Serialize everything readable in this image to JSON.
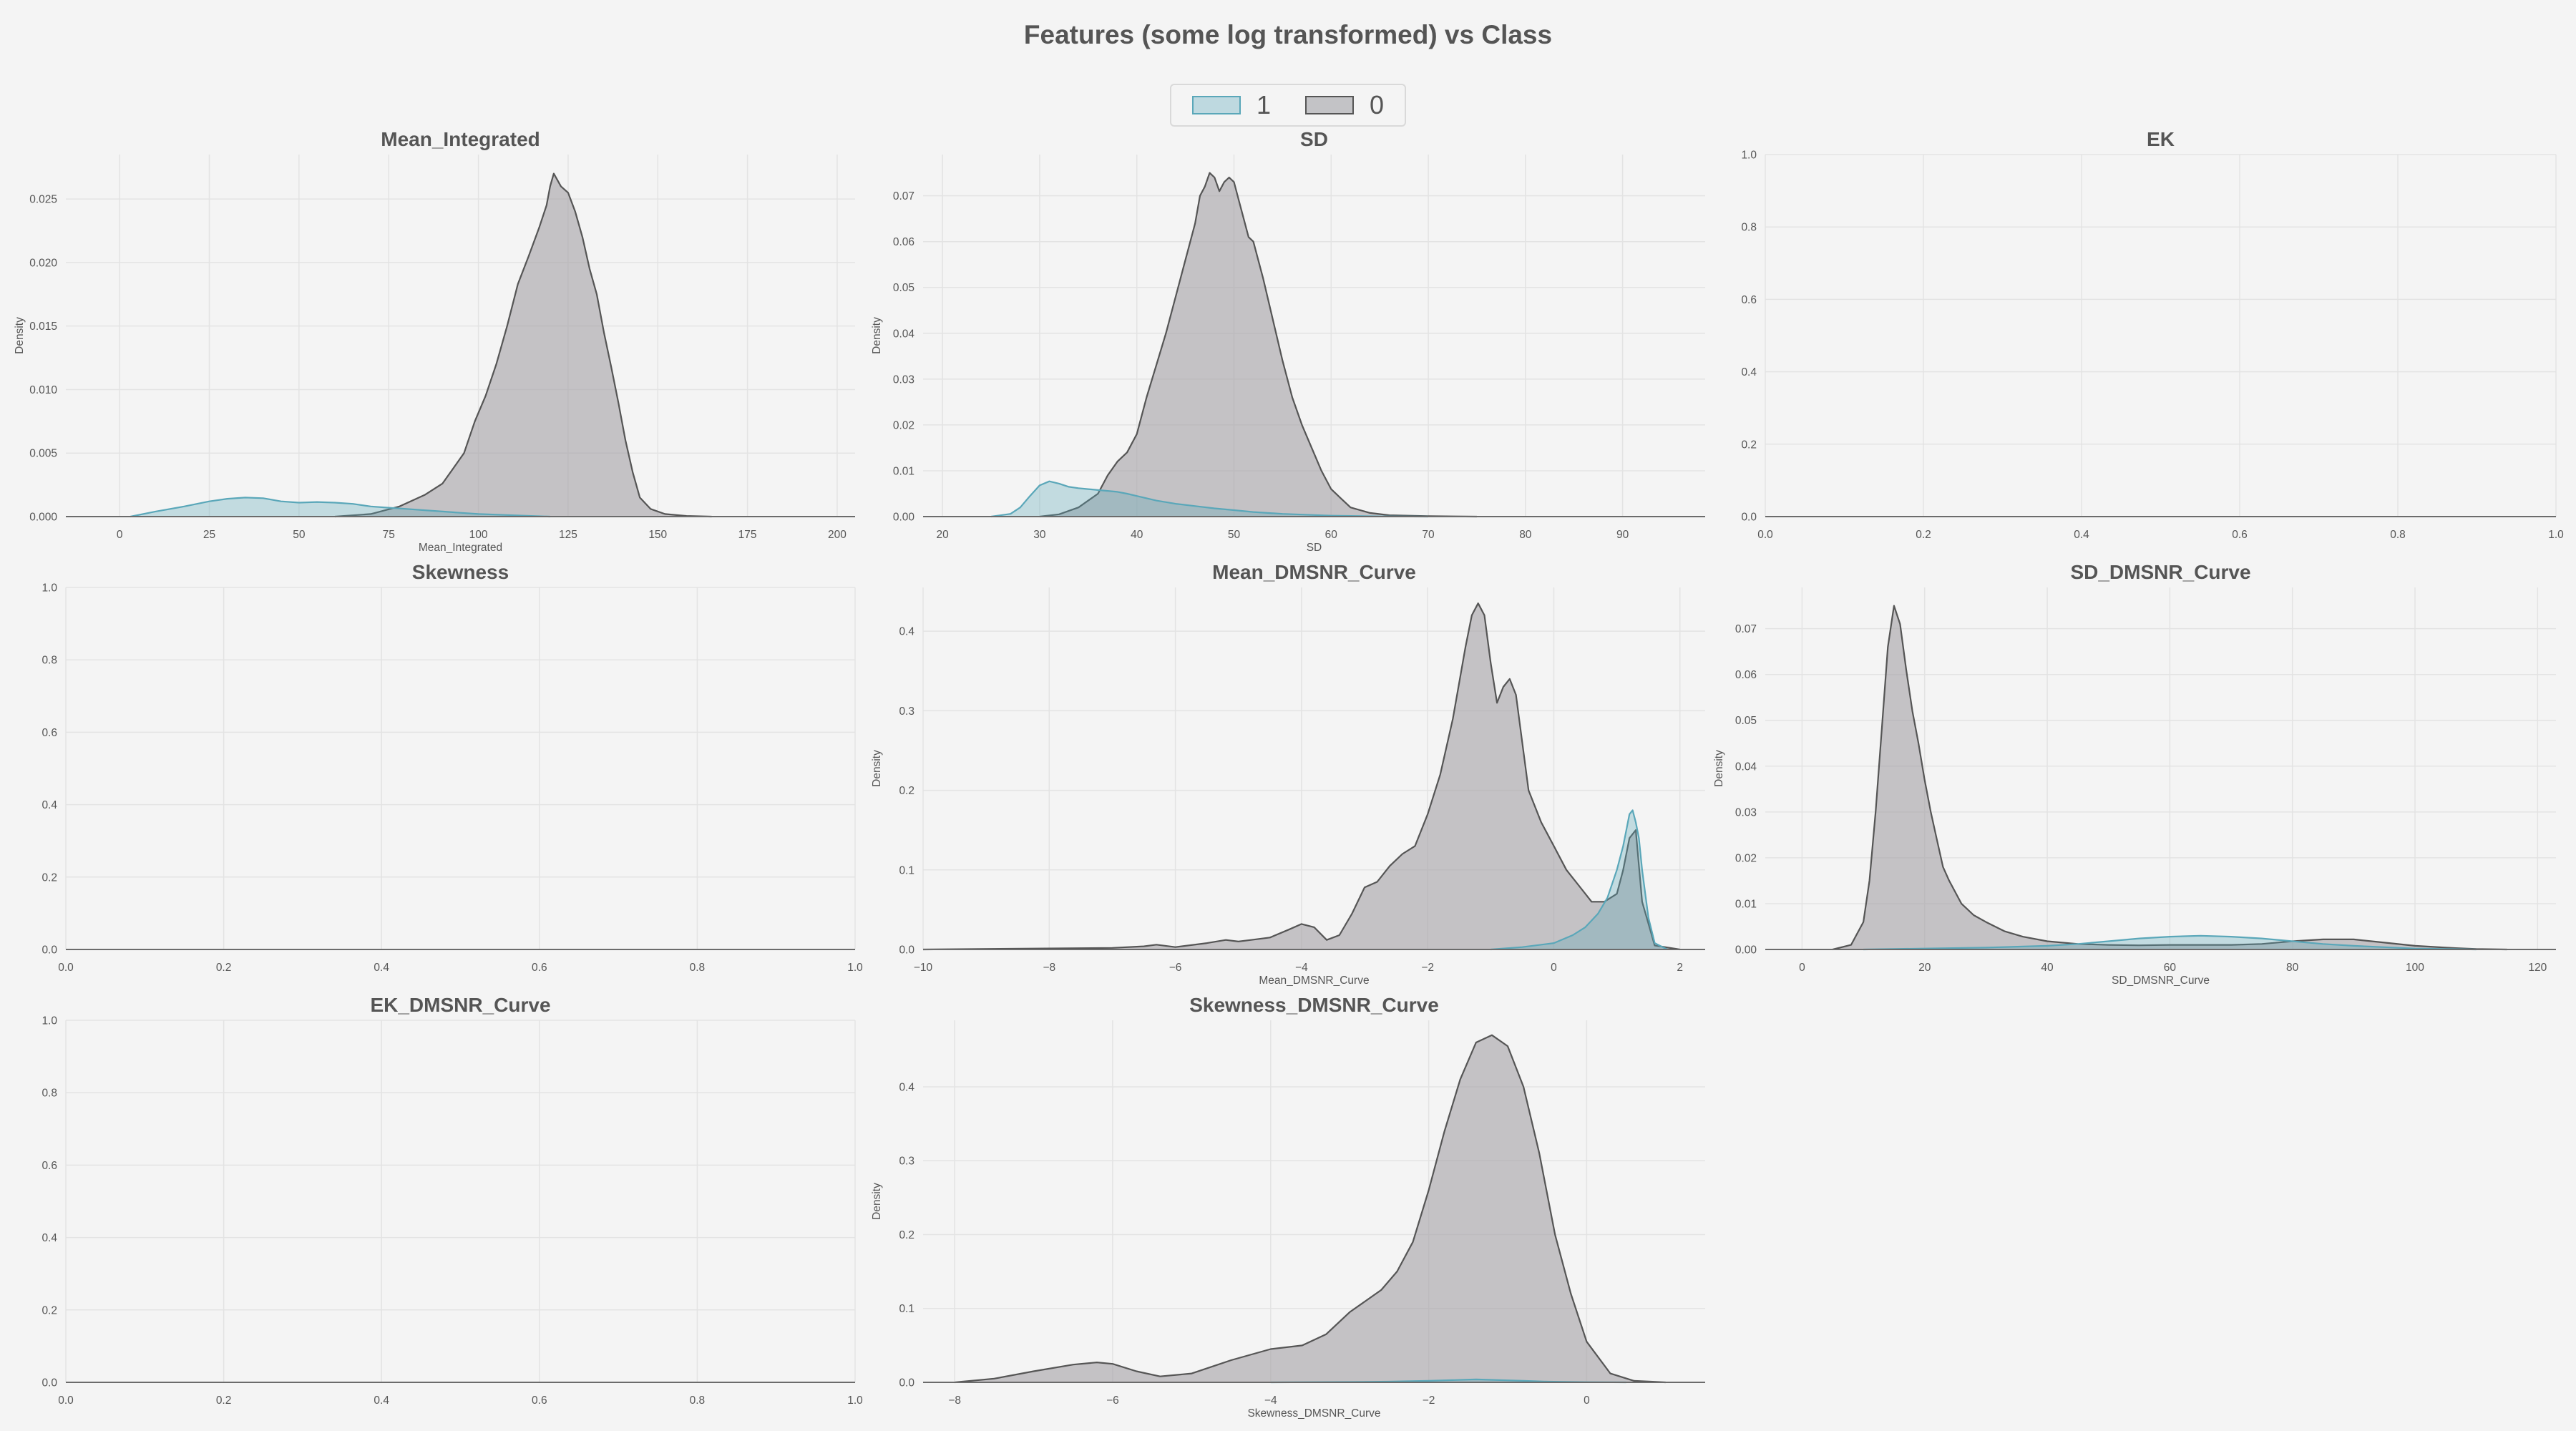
{
  "suptitle": "Features (some log transformed) vs Class",
  "colors": {
    "background": "#f4f4f4",
    "grid": "#e3e3e3",
    "class_1": "#5aa7b9",
    "class_0": "#9a9aa0",
    "outline": "#555555"
  },
  "legend": [
    {
      "label": "1",
      "color": "#5aa7b9"
    },
    {
      "label": "0",
      "color": "#9a9aa0"
    }
  ],
  "chart_data": [
    {
      "type": "area",
      "title": "Mean_Integrated",
      "xlabel": "Mean_Integrated",
      "ylabel": "Density",
      "xlim": [
        -15,
        205
      ],
      "ylim": [
        0,
        0.0285
      ],
      "xticks": [
        0,
        25,
        50,
        75,
        100,
        125,
        150,
        175,
        200
      ],
      "yticks": [
        0.0,
        0.005,
        0.01,
        0.015,
        0.02,
        0.025
      ],
      "tick_decimals": 3,
      "grid": true,
      "series": [
        {
          "name": "0",
          "x": [
            60,
            70,
            78,
            85,
            90,
            93,
            96,
            99,
            102,
            105,
            108,
            111,
            114,
            117,
            119,
            120,
            121,
            123,
            125,
            127,
            129,
            131,
            133,
            135,
            137,
            139,
            141,
            143,
            145,
            148,
            152,
            158,
            165
          ],
          "y": [
            0,
            0.0002,
            0.0008,
            0.0017,
            0.0026,
            0.0038,
            0.005,
            0.0075,
            0.0095,
            0.012,
            0.015,
            0.0183,
            0.0205,
            0.0228,
            0.0245,
            0.026,
            0.027,
            0.026,
            0.0255,
            0.024,
            0.022,
            0.0195,
            0.0175,
            0.0145,
            0.0118,
            0.009,
            0.006,
            0.0035,
            0.0015,
            0.0006,
            0.0002,
            5e-05,
            0
          ]
        },
        {
          "name": "1",
          "x": [
            3,
            10,
            18,
            25,
            30,
            35,
            40,
            45,
            50,
            55,
            60,
            65,
            70,
            75,
            80,
            85,
            90,
            95,
            100,
            110,
            120
          ],
          "y": [
            0,
            0.0004,
            0.0008,
            0.0012,
            0.0014,
            0.0015,
            0.00145,
            0.0012,
            0.0011,
            0.00115,
            0.0011,
            0.001,
            0.0008,
            0.0007,
            0.0006,
            0.0005,
            0.0004,
            0.0003,
            0.0002,
            0.0001,
            0
          ]
        }
      ]
    },
    {
      "type": "area",
      "title": "SD",
      "xlabel": "SD",
      "ylabel": "Density",
      "xlim": [
        18,
        98.5
      ],
      "ylim": [
        0,
        0.079
      ],
      "xticks": [
        20,
        30,
        40,
        50,
        60,
        70,
        80,
        90
      ],
      "yticks": [
        0.0,
        0.01,
        0.02,
        0.03,
        0.04,
        0.05,
        0.06,
        0.07
      ],
      "tick_decimals": 2,
      "grid": true,
      "series": [
        {
          "name": "0",
          "x": [
            30,
            32,
            34,
            36,
            37,
            38,
            39,
            40,
            41,
            42,
            43,
            44,
            45,
            46,
            46.5,
            47,
            47.5,
            48,
            48.5,
            49,
            49.5,
            50,
            50.5,
            51,
            51.5,
            52,
            53,
            54,
            55,
            56,
            57,
            58,
            59,
            60,
            61,
            62,
            64,
            66,
            70,
            75
          ],
          "y": [
            0,
            0.0005,
            0.002,
            0.005,
            0.009,
            0.012,
            0.014,
            0.018,
            0.026,
            0.033,
            0.04,
            0.048,
            0.056,
            0.064,
            0.07,
            0.072,
            0.075,
            0.074,
            0.071,
            0.073,
            0.074,
            0.073,
            0.069,
            0.065,
            0.061,
            0.06,
            0.052,
            0.043,
            0.034,
            0.026,
            0.02,
            0.015,
            0.01,
            0.006,
            0.004,
            0.002,
            0.0008,
            0.0003,
            0.0001,
            0
          ]
        },
        {
          "name": "1",
          "x": [
            25,
            27,
            28,
            29,
            30,
            31,
            32,
            33,
            34,
            35,
            36,
            37,
            38,
            39,
            40,
            42,
            44,
            46,
            48,
            50,
            52,
            55,
            60,
            65,
            70
          ],
          "y": [
            0,
            0.0006,
            0.002,
            0.0045,
            0.0068,
            0.0077,
            0.0072,
            0.0065,
            0.0062,
            0.006,
            0.0058,
            0.0056,
            0.0054,
            0.005,
            0.0045,
            0.0035,
            0.0028,
            0.0023,
            0.0018,
            0.0014,
            0.001,
            0.0006,
            0.0002,
            5e-05,
            0
          ]
        }
      ]
    },
    {
      "type": "area",
      "title": "EK",
      "xlabel": "",
      "ylabel": "",
      "xlim": [
        0,
        1
      ],
      "ylim": [
        0,
        1
      ],
      "xticks": [
        0.0,
        0.2,
        0.4,
        0.6,
        0.8,
        1.0
      ],
      "yticks": [
        0.0,
        0.2,
        0.4,
        0.6,
        0.8,
        1.0
      ],
      "tick_decimals": 1,
      "grid": true,
      "series": []
    },
    {
      "type": "area",
      "title": "Skewness",
      "xlabel": "",
      "ylabel": "",
      "xlim": [
        0,
        1
      ],
      "ylim": [
        0,
        1
      ],
      "xticks": [
        0.0,
        0.2,
        0.4,
        0.6,
        0.8,
        1.0
      ],
      "yticks": [
        0.0,
        0.2,
        0.4,
        0.6,
        0.8,
        1.0
      ],
      "tick_decimals": 1,
      "grid": true,
      "series": []
    },
    {
      "type": "area",
      "title": "Mean_DMSNR_Curve",
      "xlabel": "Mean_DMSNR_Curve",
      "ylabel": "Density",
      "xlim": [
        -10,
        2.4
      ],
      "ylim": [
        0,
        0.455
      ],
      "xticks": [
        -10,
        -8,
        -6,
        -4,
        -2,
        0,
        2
      ],
      "yticks": [
        0.0,
        0.1,
        0.2,
        0.3,
        0.4
      ],
      "tick_decimals": 1,
      "grid": true,
      "series": [
        {
          "name": "0",
          "x": [
            -10,
            -7,
            -6.5,
            -6.3,
            -6,
            -5.5,
            -5.2,
            -5,
            -4.8,
            -4.5,
            -4.2,
            -4,
            -3.8,
            -3.6,
            -3.4,
            -3.2,
            -3,
            -2.8,
            -2.6,
            -2.4,
            -2.2,
            -2,
            -1.8,
            -1.6,
            -1.4,
            -1.3,
            -1.2,
            -1.1,
            -1,
            -0.9,
            -0.8,
            -0.7,
            -0.6,
            -0.5,
            -0.4,
            -0.2,
            0,
            0.2,
            0.4,
            0.6,
            0.8,
            1,
            1.1,
            1.2,
            1.3,
            1.4,
            1.6,
            2
          ],
          "y": [
            0,
            0.002,
            0.004,
            0.006,
            0.003,
            0.008,
            0.012,
            0.01,
            0.012,
            0.015,
            0.025,
            0.032,
            0.028,
            0.012,
            0.018,
            0.045,
            0.078,
            0.085,
            0.105,
            0.12,
            0.13,
            0.17,
            0.22,
            0.29,
            0.38,
            0.42,
            0.435,
            0.42,
            0.36,
            0.31,
            0.33,
            0.34,
            0.32,
            0.26,
            0.2,
            0.16,
            0.13,
            0.1,
            0.08,
            0.06,
            0.06,
            0.07,
            0.1,
            0.14,
            0.15,
            0.06,
            0.005,
            0
          ]
        },
        {
          "name": "1",
          "x": [
            -1,
            -0.5,
            0,
            0.3,
            0.5,
            0.7,
            0.85,
            1,
            1.1,
            1.15,
            1.2,
            1.25,
            1.3,
            1.35,
            1.4,
            1.5,
            1.6,
            1.8
          ],
          "y": [
            0,
            0.003,
            0.008,
            0.018,
            0.028,
            0.045,
            0.065,
            0.1,
            0.13,
            0.15,
            0.17,
            0.175,
            0.16,
            0.14,
            0.1,
            0.04,
            0.008,
            0
          ]
        }
      ]
    },
    {
      "type": "area",
      "title": "SD_DMSNR_Curve",
      "xlabel": "SD_DMSNR_Curve",
      "ylabel": "Density",
      "xlim": [
        -6,
        123
      ],
      "ylim": [
        0,
        0.079
      ],
      "xticks": [
        0,
        20,
        40,
        60,
        80,
        100,
        120
      ],
      "yticks": [
        0.0,
        0.01,
        0.02,
        0.03,
        0.04,
        0.05,
        0.06,
        0.07
      ],
      "tick_decimals": 2,
      "grid": true,
      "series": [
        {
          "name": "0",
          "x": [
            5,
            8,
            10,
            11,
            12,
            13,
            14,
            15,
            16,
            17,
            18,
            19,
            20,
            21,
            22,
            23,
            24,
            26,
            28,
            30,
            33,
            36,
            40,
            45,
            50,
            55,
            60,
            65,
            70,
            75,
            80,
            85,
            90,
            95,
            100,
            105,
            110,
            115
          ],
          "y": [
            0,
            0.001,
            0.006,
            0.015,
            0.03,
            0.048,
            0.066,
            0.075,
            0.071,
            0.061,
            0.052,
            0.045,
            0.037,
            0.03,
            0.024,
            0.018,
            0.015,
            0.01,
            0.0075,
            0.006,
            0.004,
            0.0028,
            0.0018,
            0.0012,
            0.001,
            0.0009,
            0.001,
            0.001,
            0.001,
            0.0012,
            0.0018,
            0.0022,
            0.0022,
            0.0015,
            0.0008,
            0.0004,
            0.0001,
            0
          ]
        },
        {
          "name": "1",
          "x": [
            10,
            20,
            30,
            40,
            45,
            50,
            55,
            60,
            65,
            70,
            75,
            80,
            85,
            90,
            95,
            100,
            110
          ],
          "y": [
            0,
            0.0002,
            0.0004,
            0.0008,
            0.0012,
            0.0018,
            0.0024,
            0.0028,
            0.003,
            0.0028,
            0.0024,
            0.0018,
            0.0012,
            0.0008,
            0.0005,
            0.0002,
            0
          ]
        }
      ]
    },
    {
      "type": "area",
      "title": "EK_DMSNR_Curve",
      "xlabel": "",
      "ylabel": "",
      "xlim": [
        0,
        1
      ],
      "ylim": [
        0,
        1
      ],
      "xticks": [
        0.0,
        0.2,
        0.4,
        0.6,
        0.8,
        1.0
      ],
      "yticks": [
        0.0,
        0.2,
        0.4,
        0.6,
        0.8,
        1.0
      ],
      "tick_decimals": 1,
      "grid": true,
      "series": []
    },
    {
      "type": "area",
      "title": "Skewness_DMSNR_Curve",
      "xlabel": "Skewness_DMSNR_Curve",
      "ylabel": "Density",
      "xlim": [
        -8.4,
        1.5
      ],
      "ylim": [
        0,
        0.49
      ],
      "xticks": [
        -8,
        -6,
        -4,
        -2,
        0
      ],
      "yticks": [
        0.0,
        0.1,
        0.2,
        0.3,
        0.4
      ],
      "tick_decimals": 1,
      "grid": true,
      "series": [
        {
          "name": "0",
          "x": [
            -8,
            -7.5,
            -7,
            -6.5,
            -6.2,
            -6,
            -5.7,
            -5.4,
            -5,
            -4.5,
            -4,
            -3.6,
            -3.3,
            -3,
            -2.8,
            -2.6,
            -2.4,
            -2.2,
            -2,
            -1.8,
            -1.6,
            -1.4,
            -1.2,
            -1,
            -0.8,
            -0.6,
            -0.4,
            -0.2,
            0,
            0.3,
            0.6,
            1
          ],
          "y": [
            0,
            0.005,
            0.015,
            0.024,
            0.027,
            0.025,
            0.015,
            0.008,
            0.012,
            0.03,
            0.045,
            0.05,
            0.065,
            0.095,
            0.11,
            0.125,
            0.15,
            0.19,
            0.26,
            0.34,
            0.41,
            0.46,
            0.47,
            0.455,
            0.4,
            0.31,
            0.2,
            0.12,
            0.055,
            0.012,
            0.002,
            0
          ]
        },
        {
          "name": "1",
          "x": [
            -4,
            -3,
            -2.5,
            -2,
            -1.7,
            -1.4,
            -1.1,
            -0.8,
            -0.5,
            0,
            0.5
          ],
          "y": [
            0,
            0.0005,
            0.001,
            0.002,
            0.003,
            0.004,
            0.003,
            0.002,
            0.001,
            0.0003,
            0
          ]
        }
      ]
    }
  ]
}
